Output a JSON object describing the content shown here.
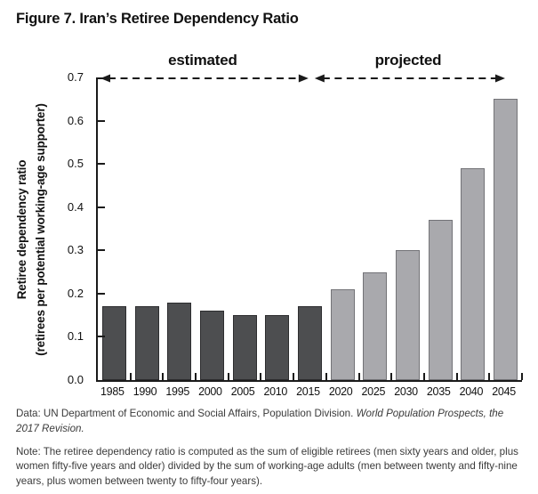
{
  "chart_data": {
    "type": "bar",
    "title": "Figure 7. Iran’s Retiree Dependency Ratio",
    "ylabel": "Retiree dependency ratio",
    "ylabel_sub": "(retirees per potential working-age supporter)",
    "ylim": [
      0,
      0.7
    ],
    "ytick_interval": 0.1,
    "yticks": [
      "0.0",
      "0.1",
      "0.2",
      "0.3",
      "0.4",
      "0.5",
      "0.6",
      "0.7"
    ],
    "grid": false,
    "legend_position": "none",
    "categories": [
      "1985",
      "1990",
      "1995",
      "2000",
      "2005",
      "2010",
      "2015",
      "2020",
      "2025",
      "2030",
      "2035",
      "2040",
      "2045"
    ],
    "series": [
      {
        "name": "estimated",
        "color": "#4d4e50",
        "border_color": "#2d2d2f",
        "values": [
          0.17,
          0.17,
          0.18,
          0.16,
          0.15,
          0.15,
          0.17,
          null,
          null,
          null,
          null,
          null,
          null
        ]
      },
      {
        "name": "projected",
        "color": "#a9a9ad",
        "border_color": "#737377",
        "values": [
          null,
          null,
          null,
          null,
          null,
          null,
          null,
          0.21,
          0.25,
          0.3,
          0.37,
          0.49,
          0.65
        ]
      }
    ],
    "annotations": [
      {
        "label": "estimated",
        "from_category": "1985",
        "to_category": "2015"
      },
      {
        "label": "projected",
        "from_category": "2020",
        "to_category": "2045"
      }
    ],
    "axis_color": "#1a1a1a"
  },
  "notes": {
    "data_source_prefix": "Data: UN Department of Economic and Social Affairs, Population Division. ",
    "data_source_italic": "World Population Prospects, the 2017 Revision.",
    "note_text": "Note: The retiree dependency ratio is computed as the sum of eligible retirees (men sixty years and older, plus women fifty-five years and older) divided by the sum of working-age adults (men between twenty and fifty-nine years, plus women between twenty to fifty-four years)."
  }
}
